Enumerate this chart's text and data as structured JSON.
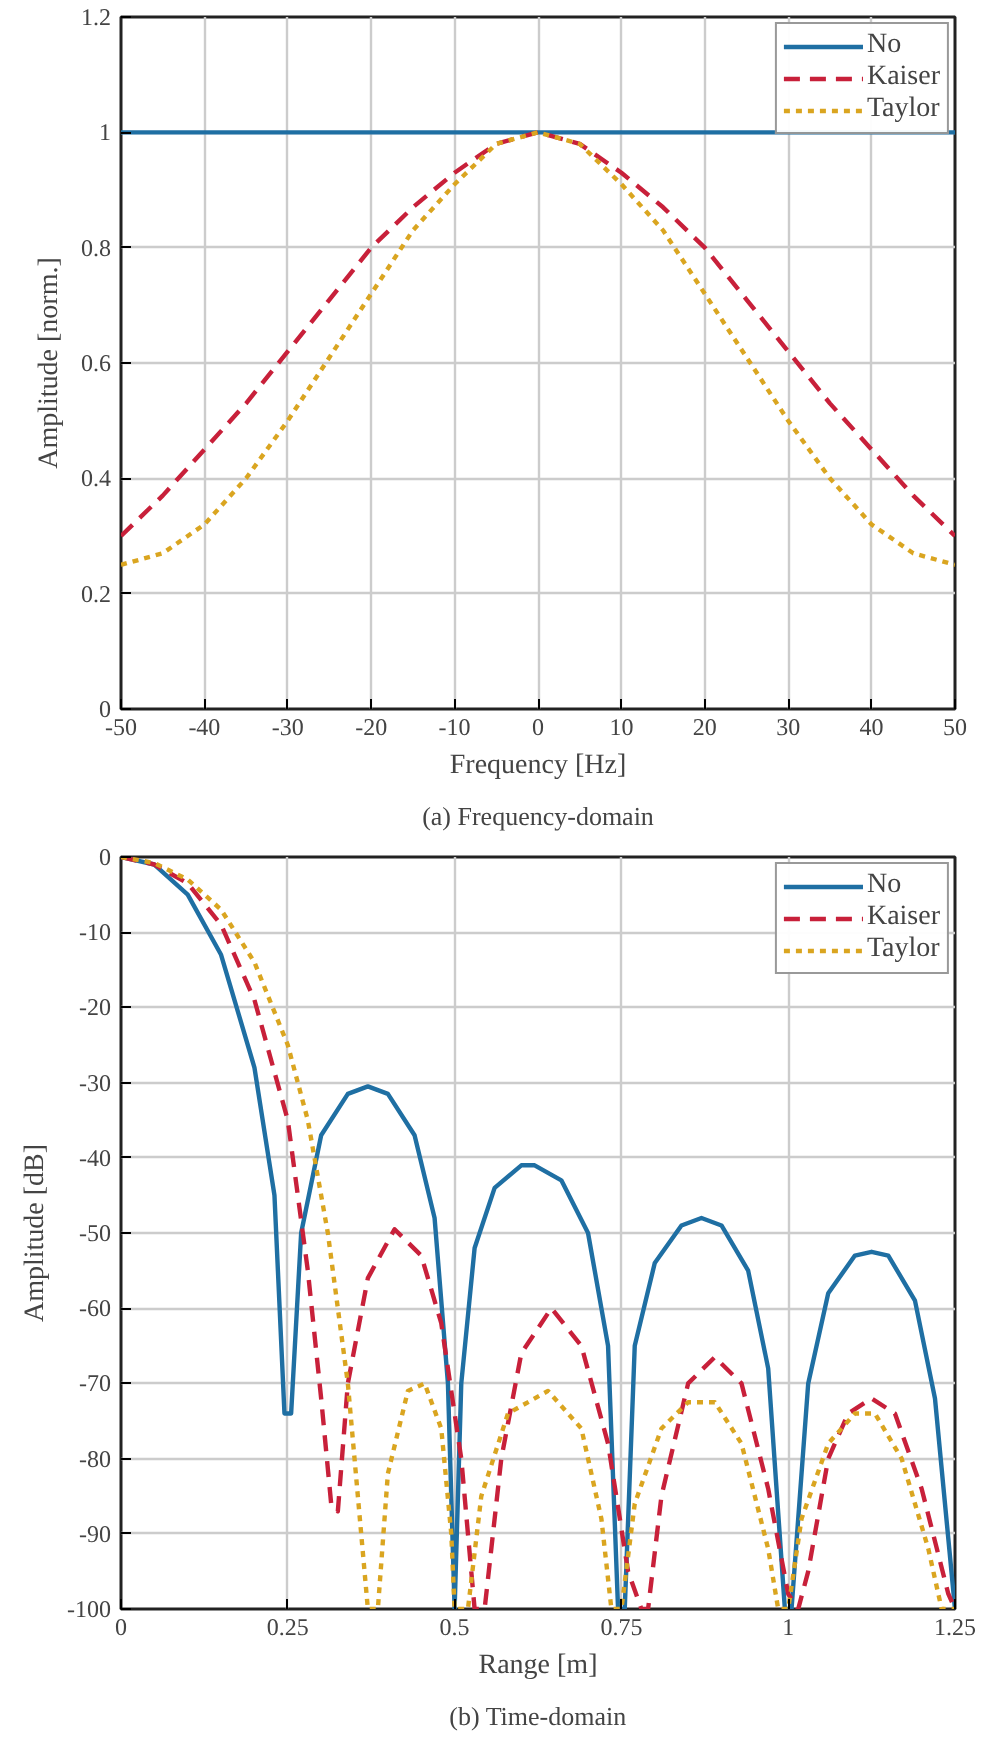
{
  "chart_data": [
    {
      "type": "line",
      "title": "(a) Frequency-domain",
      "xlabel": "Frequency [Hz]",
      "ylabel": "Amplitude [norm.]",
      "xlim": [
        -50,
        50
      ],
      "ylim": [
        0,
        1.2
      ],
      "xticks": [
        -50,
        -40,
        -30,
        -20,
        -10,
        0,
        10,
        20,
        30,
        40,
        50
      ],
      "yticks": [
        0,
        0.2,
        0.4,
        0.6,
        0.8,
        1,
        1.2
      ],
      "grid": true,
      "legend": "top right",
      "x": [
        -50,
        -45,
        -40,
        -35,
        -30,
        -25,
        -20,
        -15,
        -10,
        -5,
        0,
        5,
        10,
        15,
        20,
        25,
        30,
        35,
        40,
        45,
        50
      ],
      "series": [
        {
          "name": "No",
          "color": "#1f6fa3",
          "line_style": "solid",
          "values": [
            1,
            1,
            1,
            1,
            1,
            1,
            1,
            1,
            1,
            1,
            1,
            1,
            1,
            1,
            1,
            1,
            1,
            1,
            1,
            1,
            1
          ]
        },
        {
          "name": "Kaiser",
          "color": "#c8203a",
          "line_style": "dashed",
          "values": [
            0.3,
            0.37,
            0.45,
            0.53,
            0.62,
            0.71,
            0.8,
            0.87,
            0.93,
            0.98,
            1,
            0.98,
            0.93,
            0.87,
            0.8,
            0.71,
            0.62,
            0.53,
            0.45,
            0.37,
            0.3
          ]
        },
        {
          "name": "Taylor",
          "color": "#daa520",
          "line_style": "dotted",
          "values": [
            0.25,
            0.27,
            0.32,
            0.4,
            0.5,
            0.61,
            0.72,
            0.83,
            0.91,
            0.98,
            1,
            0.98,
            0.91,
            0.83,
            0.72,
            0.61,
            0.5,
            0.4,
            0.32,
            0.27,
            0.25
          ]
        }
      ]
    },
    {
      "type": "line",
      "title": "(b) Time-domain",
      "xlabel": "Range [m]",
      "ylabel": "Amplitude [dB]",
      "xlim": [
        0,
        1.25
      ],
      "ylim": [
        -100,
        0
      ],
      "xticks": [
        0,
        0.25,
        0.5,
        0.75,
        1,
        1.25
      ],
      "yticks": [
        -100,
        -90,
        -80,
        -70,
        -60,
        -50,
        -40,
        -30,
        -20,
        -10,
        0
      ],
      "grid": true,
      "legend": "top right",
      "series": [
        {
          "name": "No",
          "color": "#1f6fa3",
          "line_style": "solid",
          "x": [
            0,
            0.05,
            0.1,
            0.15,
            0.2,
            0.23,
            0.245,
            0.255,
            0.27,
            0.3,
            0.34,
            0.37,
            0.4,
            0.44,
            0.47,
            0.49,
            0.5,
            0.51,
            0.53,
            0.56,
            0.6,
            0.62,
            0.66,
            0.7,
            0.73,
            0.745,
            0.755,
            0.77,
            0.8,
            0.84,
            0.87,
            0.9,
            0.94,
            0.97,
            0.995,
            1.005,
            1.03,
            1.06,
            1.1,
            1.125,
            1.15,
            1.19,
            1.22,
            1.25
          ],
          "values": [
            0,
            -1,
            -5,
            -13,
            -28,
            -45,
            -74,
            -74,
            -50,
            -37,
            -31.5,
            -30.5,
            -31.5,
            -37,
            -48,
            -70,
            -100,
            -70,
            -52,
            -44,
            -41,
            -41,
            -43,
            -50,
            -65,
            -100,
            -100,
            -65,
            -54,
            -49,
            -48,
            -49,
            -55,
            -68,
            -100,
            -100,
            -70,
            -58,
            -53,
            -52.5,
            -53,
            -59,
            -72,
            -100
          ]
        },
        {
          "name": "Kaiser",
          "color": "#c8203a",
          "line_style": "dashed",
          "x": [
            0,
            0.05,
            0.1,
            0.15,
            0.2,
            0.25,
            0.28,
            0.3,
            0.315,
            0.325,
            0.34,
            0.37,
            0.41,
            0.45,
            0.48,
            0.51,
            0.53,
            0.545,
            0.57,
            0.6,
            0.645,
            0.69,
            0.73,
            0.76,
            0.78,
            0.79,
            0.81,
            0.85,
            0.89,
            0.93,
            0.97,
            1.0,
            1.015,
            1.03,
            1.06,
            1.09,
            1.125,
            1.16,
            1.2,
            1.24,
            1.25
          ],
          "values": [
            0,
            -1,
            -3.5,
            -9,
            -19,
            -35,
            -55,
            -72,
            -86,
            -87,
            -70,
            -56,
            -49.5,
            -53,
            -62,
            -80,
            -100,
            -100,
            -80,
            -66,
            -60,
            -65,
            -78,
            -95,
            -100,
            -100,
            -85,
            -70,
            -66.5,
            -70,
            -84,
            -98,
            -100,
            -95,
            -80,
            -74,
            -72,
            -74,
            -84,
            -98,
            -100
          ]
        },
        {
          "name": "Taylor",
          "color": "#daa520",
          "line_style": "dotted",
          "x": [
            0,
            0.05,
            0.1,
            0.15,
            0.2,
            0.25,
            0.28,
            0.31,
            0.34,
            0.36,
            0.37,
            0.385,
            0.4,
            0.43,
            0.455,
            0.48,
            0.495,
            0.5,
            0.52,
            0.54,
            0.58,
            0.64,
            0.69,
            0.72,
            0.735,
            0.75,
            0.77,
            0.81,
            0.85,
            0.89,
            0.93,
            0.97,
            0.985,
            1.0,
            1.02,
            1.06,
            1.1,
            1.13,
            1.17,
            1.21,
            1.23,
            1.25
          ],
          "values": [
            0,
            -0.8,
            -3,
            -7,
            -14,
            -25,
            -35,
            -50,
            -70,
            -90,
            -100,
            -100,
            -82,
            -71,
            -70,
            -76,
            -90,
            -100,
            -100,
            -85,
            -74,
            -71,
            -76,
            -88,
            -100,
            -100,
            -86,
            -76,
            -72.5,
            -72.5,
            -78,
            -92,
            -100,
            -100,
            -88,
            -78,
            -74,
            -74,
            -80,
            -92,
            -100,
            -100
          ]
        }
      ]
    }
  ]
}
